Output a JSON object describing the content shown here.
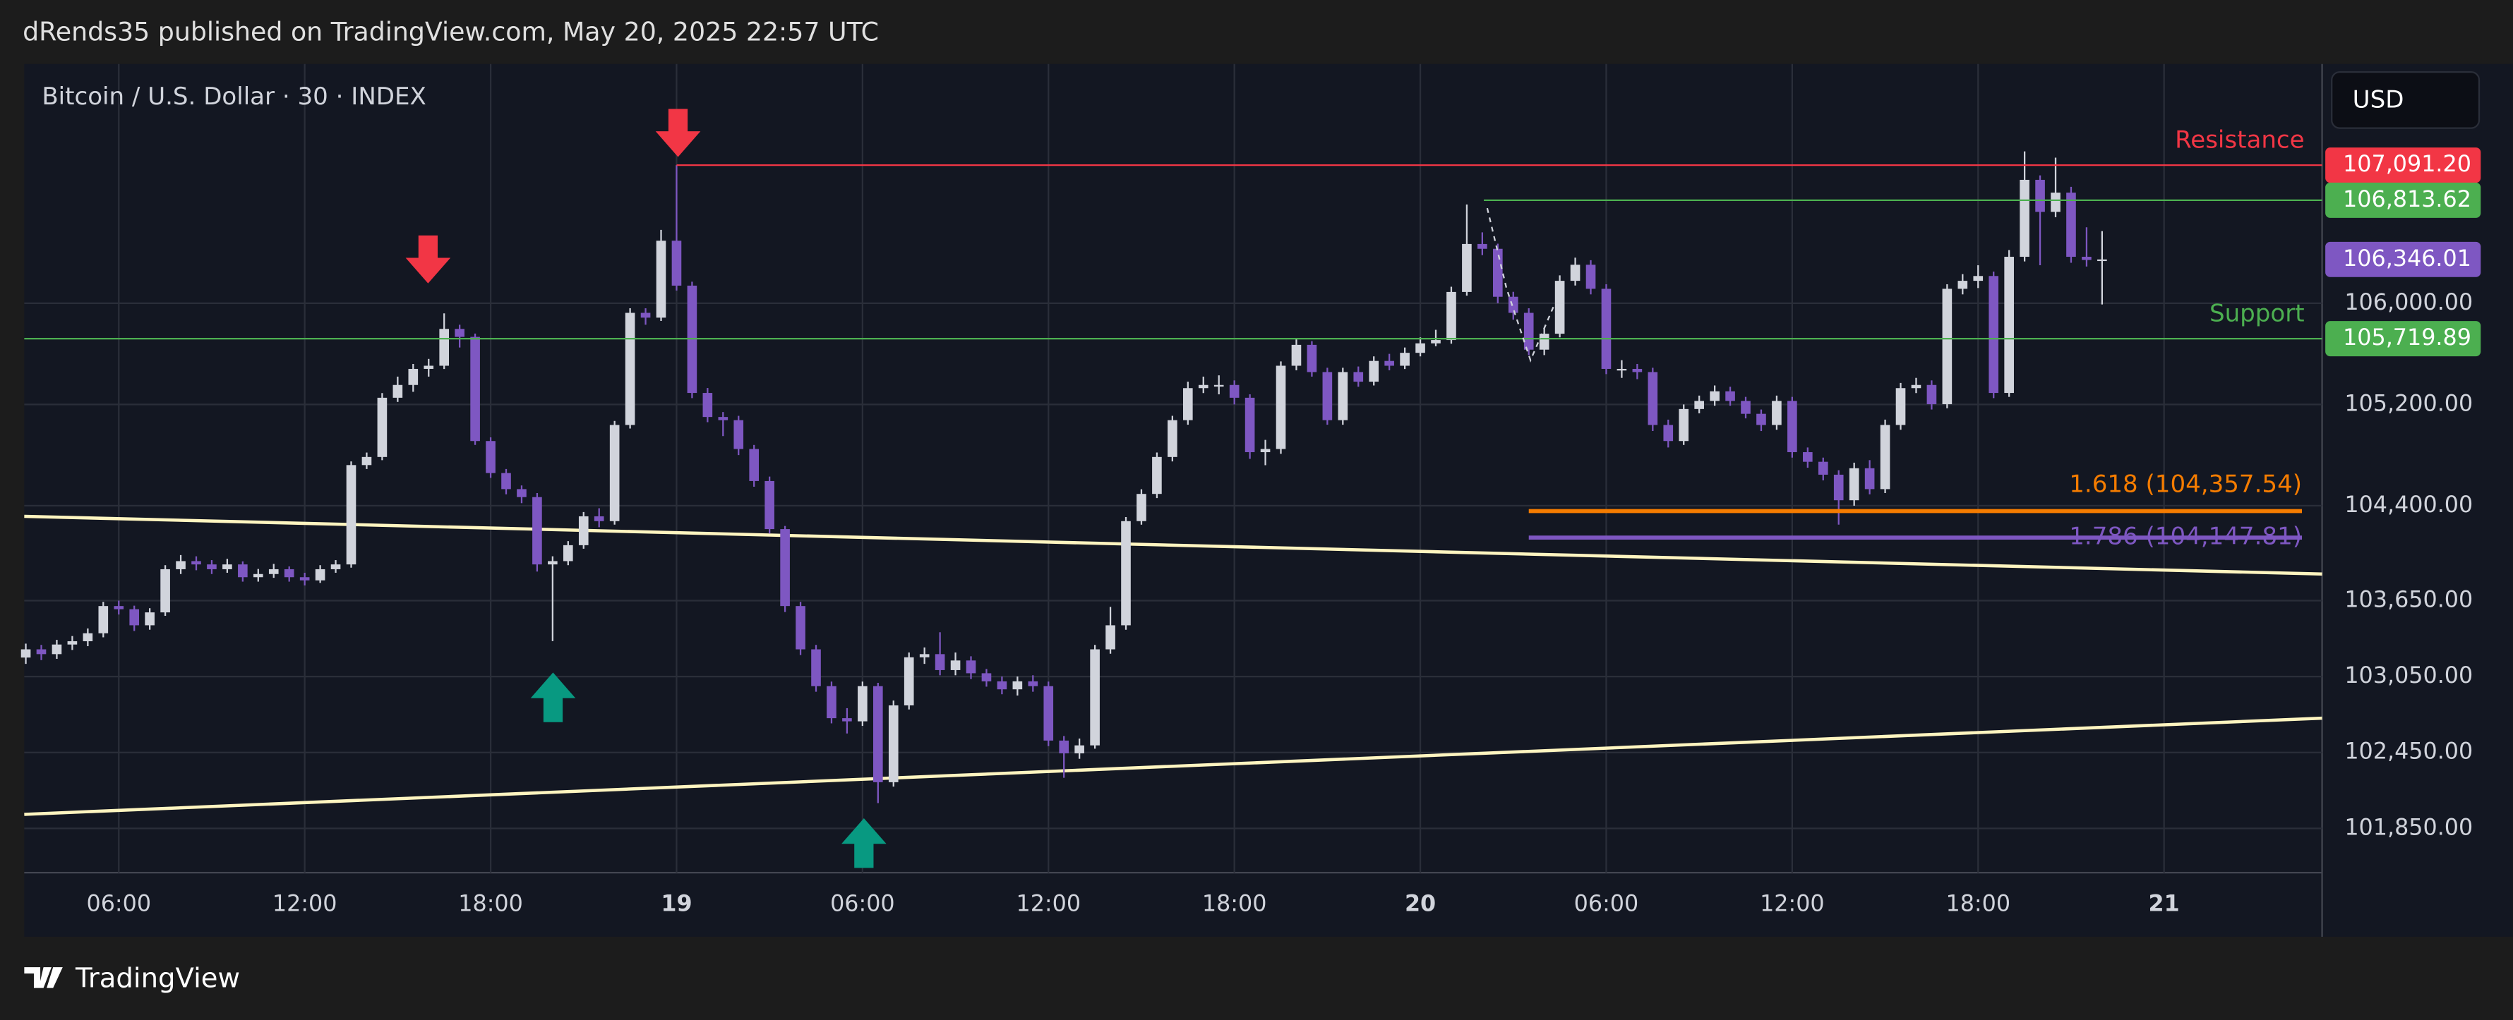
{
  "header": {
    "publisher": "dRends35 published on TradingView.com, May 20, 2025 22:57 UTC",
    "brand": "TradingView"
  },
  "chart_data": {
    "type": "candlestick",
    "title": "Bitcoin / U.S. Dollar · 30 · INDEX",
    "currency": "USD",
    "up_color": "#d1d4dc",
    "down_color": "#7e57c2",
    "grid": true,
    "xlim": [
      2.95,
      77.1
    ],
    "xticks": [
      {
        "value": 6,
        "label": "06:00"
      },
      {
        "value": 12,
        "label": "12:00"
      },
      {
        "value": 18,
        "label": "18:00"
      },
      {
        "value": 24,
        "label": "19"
      },
      {
        "value": 30,
        "label": "06:00"
      },
      {
        "value": 36,
        "label": "12:00"
      },
      {
        "value": 42,
        "label": "18:00"
      },
      {
        "value": 48,
        "label": "20"
      },
      {
        "value": 54,
        "label": "06:00"
      },
      {
        "value": 60,
        "label": "12:00"
      },
      {
        "value": 66,
        "label": "18:00"
      },
      {
        "value": 72,
        "label": "21"
      }
    ],
    "ylim": [
      101500,
      107890
    ],
    "yticks": [
      {
        "value": 101850,
        "label": "101,850.00"
      },
      {
        "value": 102450,
        "label": "102,450.00"
      },
      {
        "value": 103050,
        "label": "103,050.00"
      },
      {
        "value": 103650,
        "label": "103,650.00"
      },
      {
        "value": 104400,
        "label": "104,400.00"
      },
      {
        "value": 105200,
        "label": "105,200.00"
      },
      {
        "value": 106000,
        "label": "106,000.00"
      }
    ],
    "x": [
      3,
      3.5,
      4,
      4.5,
      5,
      5.5,
      6,
      6.5,
      7,
      7.5,
      8,
      8.5,
      9,
      9.5,
      10,
      10.5,
      11,
      11.5,
      12,
      12.5,
      13,
      13.5,
      14,
      14.5,
      15,
      15.5,
      16,
      16.5,
      17,
      17.5,
      18,
      18.5,
      19,
      19.5,
      20,
      20.5,
      21,
      21.5,
      22,
      22.5,
      23,
      23.5,
      24,
      24.5,
      25,
      25.5,
      26,
      26.5,
      27,
      27.5,
      28,
      28.5,
      29,
      29.5,
      30,
      30.5,
      31,
      31.5,
      32,
      32.5,
      33,
      33.5,
      34,
      34.5,
      35,
      35.5,
      36,
      36.5,
      37,
      37.5,
      38,
      38.5,
      39,
      39.5,
      40,
      40.5,
      41,
      41.5,
      42,
      42.5,
      43,
      43.5,
      44,
      44.5,
      45,
      45.5,
      46,
      46.5,
      47,
      47.5,
      48,
      48.5,
      49,
      49.5,
      50,
      50.5,
      51,
      51.5,
      52,
      52.5,
      53,
      53.5,
      54,
      54.5,
      55,
      55.5,
      56,
      56.5,
      57,
      57.5,
      58,
      58.5,
      59,
      59.5,
      60,
      60.5,
      61,
      61.5,
      62,
      62.5,
      63,
      63.5,
      64,
      64.5,
      65,
      65.5,
      66,
      66.5,
      67,
      67.5,
      68,
      68.5,
      69,
      69.5,
      70
    ],
    "open": [
      103200,
      103265,
      103227,
      103303,
      103329,
      103392,
      103607,
      103582,
      103455,
      103557,
      103898,
      103962,
      103936,
      103898,
      103936,
      103835,
      103860,
      103898,
      103835,
      103810,
      103898,
      103936,
      104721,
      104785,
      105253,
      105354,
      105481,
      105506,
      105797,
      105734,
      104911,
      104658,
      104531,
      104468,
      103936,
      103962,
      104088,
      104316,
      104278,
      105038,
      105924,
      105886,
      106494,
      106139,
      105291,
      105101,
      105076,
      104848,
      104595,
      104215,
      103607,
      103265,
      102974,
      102721,
      102696,
      102974,
      102215,
      102822,
      103202,
      103227,
      103101,
      103177,
      103076,
      103012,
      102949,
      103012,
      102974,
      102544,
      102443,
      102506,
      103265,
      103455,
      104278,
      104493,
      104785,
      105076,
      105329,
      105354,
      105354,
      105253,
      104823,
      104848,
      105506,
      105671,
      105456,
      105076,
      105456,
      105380,
      105544,
      105506,
      105608,
      105683,
      105709,
      106089,
      106468,
      106430,
      106051,
      105924,
      105633,
      105759,
      106177,
      106304,
      106114,
      105481,
      105481,
      105456,
      105038,
      104911,
      105164,
      105228,
      105304,
      105228,
      105126,
      105038,
      105228,
      104823,
      104747,
      104645,
      104443,
      104696,
      104531,
      105038,
      105329,
      105354,
      105202,
      106114,
      106177,
      106215,
      105291,
      106367,
      106975,
      106722,
      106874,
      106367,
      106342
    ],
    "high": [
      103310,
      103300,
      103340,
      103370,
      103430,
      103640,
      103650,
      103610,
      103590,
      103930,
      104010,
      104000,
      103970,
      103980,
      103960,
      103900,
      103940,
      103920,
      103870,
      103930,
      103970,
      104750,
      104820,
      105290,
      105420,
      105520,
      105560,
      105920,
      105830,
      105760,
      104940,
      104690,
      104560,
      104500,
      104000,
      104120,
      104350,
      104380,
      105070,
      105960,
      105960,
      106580,
      107091.2,
      106170,
      105330,
      105140,
      105110,
      104880,
      104630,
      104240,
      103640,
      103300,
      103010,
      102800,
      103010,
      103000,
      102860,
      103240,
      103280,
      103400,
      103240,
      103210,
      103110,
      103050,
      103050,
      103060,
      103010,
      102580,
      102560,
      103300,
      103600,
      104310,
      104530,
      104820,
      105110,
      105380,
      105420,
      105430,
      105390,
      105280,
      104920,
      105540,
      105720,
      105700,
      105490,
      105490,
      105500,
      105580,
      105600,
      105650,
      105730,
      105790,
      106130,
      106780,
      106560,
      106470,
      106090,
      105960,
      105800,
      106220,
      106360,
      106340,
      106150,
      105550,
      105520,
      105490,
      105080,
      105200,
      105270,
      105350,
      105340,
      105260,
      105160,
      105270,
      105260,
      104860,
      104780,
      104680,
      104740,
      104760,
      105080,
      105370,
      105410,
      105390,
      106150,
      106230,
      106300,
      106250,
      106420,
      107200,
      107010,
      107150,
      106920,
      106600,
      106570
    ],
    "low": [
      103150,
      103180,
      103190,
      103260,
      103290,
      103360,
      103540,
      103410,
      103420,
      103530,
      103860,
      103890,
      103860,
      103870,
      103800,
      103800,
      103830,
      103800,
      103770,
      103790,
      103870,
      103910,
      104690,
      104760,
      105220,
      105300,
      105420,
      105480,
      105650,
      104880,
      104620,
      104490,
      104420,
      103880,
      103330,
      103930,
      104060,
      104230,
      104250,
      105010,
      105830,
      105860,
      106100,
      105250,
      105060,
      104950,
      104800,
      104550,
      104180,
      103560,
      103220,
      102930,
      102680,
      102600,
      102660,
      102050,
      102180,
      102790,
      103150,
      103060,
      103060,
      103030,
      102970,
      102910,
      102900,
      102930,
      102500,
      102250,
      102400,
      102480,
      103230,
      103420,
      104250,
      104460,
      104750,
      105040,
      105290,
      105280,
      105200,
      104770,
      104720,
      104810,
      105470,
      105420,
      105040,
      105040,
      105340,
      105350,
      105470,
      105480,
      105580,
      105660,
      105680,
      106060,
      106380,
      106000,
      105870,
      105590,
      105590,
      105730,
      106140,
      106070,
      105440,
      105410,
      105400,
      104990,
      104860,
      104880,
      105130,
      105190,
      105190,
      105090,
      104990,
      105000,
      104780,
      104700,
      104600,
      104250,
      104400,
      104490,
      104500,
      105000,
      105290,
      105160,
      105170,
      106070,
      106120,
      105250,
      105260,
      106330,
      106300,
      106680,
      106320,
      106290,
      105990
    ],
    "close": [
      103265,
      103227,
      103303,
      103329,
      103392,
      103607,
      103582,
      103455,
      103557,
      103898,
      103962,
      103936,
      103898,
      103936,
      103835,
      103860,
      103898,
      103835,
      103810,
      103898,
      103936,
      104721,
      104785,
      105253,
      105354,
      105481,
      105506,
      105797,
      105734,
      104911,
      104658,
      104531,
      104468,
      103936,
      103962,
      104088,
      104316,
      104278,
      105038,
      105924,
      105886,
      106494,
      106139,
      105291,
      105101,
      105076,
      104848,
      104595,
      104215,
      103607,
      103265,
      102974,
      102721,
      102696,
      102974,
      102215,
      102822,
      103202,
      103227,
      103101,
      103177,
      103076,
      103012,
      102949,
      103012,
      102974,
      102544,
      102443,
      102506,
      103265,
      103455,
      104278,
      104493,
      104785,
      105076,
      105329,
      105354,
      105354,
      105253,
      104823,
      104848,
      105506,
      105671,
      105456,
      105076,
      105456,
      105380,
      105544,
      105506,
      105608,
      105683,
      105709,
      106089,
      106468,
      106430,
      106051,
      105924,
      105633,
      105759,
      106177,
      106304,
      106114,
      105481,
      105481,
      105456,
      105038,
      104911,
      105164,
      105228,
      105304,
      105228,
      105126,
      105038,
      105228,
      104823,
      104747,
      104645,
      104443,
      104696,
      104531,
      105038,
      105329,
      105354,
      105202,
      106114,
      106177,
      106215,
      105291,
      106367,
      106975,
      106722,
      106874,
      106367,
      106342,
      106346.01
    ],
    "levels": [
      {
        "name": "Resistance",
        "value": 107091.2,
        "label": "107,091.20",
        "color": "#f23645",
        "from": 24
      },
      {
        "value": 106813.62,
        "label": "106,813.62",
        "color": "#4caf50",
        "from": 50.05
      },
      {
        "name": "Support",
        "value": 105719.89,
        "label": "105,719.89",
        "color": "#4caf50",
        "from": 2.95
      }
    ],
    "last_price": {
      "value": 106346.01,
      "label": "106,346.01",
      "color": "#7e57c2"
    },
    "fib_levels": [
      {
        "text": "1.618 (104,357.54)",
        "value": 104357.54,
        "color": "#f57c00",
        "from": 51.5,
        "to": 76.45
      },
      {
        "text": "1.786 (104,147.81)",
        "value": 104147.81,
        "color": "#7e57c2",
        "from": 51.5,
        "to": 76.45
      }
    ],
    "trendlines": [
      {
        "x": [
          2.95,
          77.1
        ],
        "y": [
          104316,
          103860
        ],
        "color": "#fff5c0"
      },
      {
        "x": [
          2.95,
          77.1
        ],
        "y": [
          101961,
          102721
        ],
        "color": "#fff5c0"
      }
    ]
  }
}
